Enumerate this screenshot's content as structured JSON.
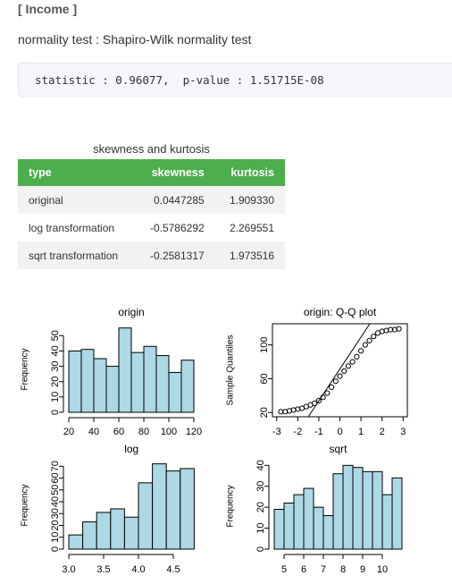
{
  "header": {
    "title": "[ Income ]"
  },
  "test": {
    "label": "normality test : Shapiro-Wilk normality test",
    "result": "statistic : 0.96077,  p-value : 1.51715E-08"
  },
  "table": {
    "caption": "skewness and kurtosis",
    "columns": [
      "type",
      "skewness",
      "kurtosis"
    ],
    "rows": [
      [
        "original",
        "0.0447285",
        "1.909330"
      ],
      [
        "log transformation",
        "-0.5786292",
        "2.269551"
      ],
      [
        "sqrt transformation",
        "-0.2581317",
        "1.973516"
      ]
    ]
  },
  "chart_data": [
    {
      "type": "histogram",
      "title": "origin",
      "ylabel": "Frequency",
      "bins": [
        20,
        30,
        40,
        50,
        60,
        70,
        80,
        90,
        100,
        110,
        120
      ],
      "values": [
        40,
        41,
        35,
        30,
        55,
        39,
        43,
        37,
        26,
        34
      ],
      "color": "#add8e6",
      "xlim": [
        20,
        120
      ],
      "xticks": [
        20,
        40,
        60,
        80,
        100,
        120
      ],
      "ylim": [
        0,
        56
      ],
      "yticks": [
        0,
        10,
        20,
        30,
        40,
        50
      ]
    },
    {
      "type": "scatter",
      "title": "origin: Q-Q plot",
      "ylabel": "Sample Quantiles",
      "x": [
        -2.8,
        -2.6,
        -2.4,
        -2.2,
        -2.0,
        -1.8,
        -1.6,
        -1.4,
        -1.2,
        -1.0,
        -0.8,
        -0.6,
        -0.4,
        -0.2,
        0,
        0.2,
        0.4,
        0.6,
        0.8,
        1.0,
        1.2,
        1.4,
        1.6,
        1.8,
        2.0,
        2.2,
        2.4,
        2.6,
        2.8
      ],
      "y": [
        21,
        21,
        22,
        23,
        24,
        25,
        27,
        29,
        31,
        34,
        38,
        43,
        50,
        57,
        63,
        69,
        75,
        80,
        86,
        93,
        100,
        105,
        110,
        114,
        116,
        117,
        118,
        118,
        119
      ],
      "reference_line": {
        "x": [
          -1.5,
          1.42
        ],
        "y": [
          15,
          125
        ]
      },
      "xlim": [
        -3.2,
        3.2
      ],
      "xticks": [
        -3,
        -2,
        -1,
        0,
        1,
        2,
        3
      ],
      "ylim": [
        15,
        125
      ],
      "yticks": [
        20,
        60,
        100
      ]
    },
    {
      "type": "histogram",
      "title": "log",
      "ylabel": "Frequency",
      "bins": [
        3.0,
        3.2,
        3.4,
        3.6,
        3.8,
        4.0,
        4.2,
        4.4,
        4.6,
        4.8
      ],
      "values": [
        12,
        23,
        31,
        34,
        27,
        56,
        72,
        66,
        68
      ],
      "color": "#add8e6",
      "xlim": [
        3.0,
        4.8
      ],
      "xticks": [
        {
          "value": 3,
          "label": "3.0"
        },
        3.5,
        {
          "value": 4,
          "label": "4.0"
        },
        4.5
      ],
      "ylim": [
        0,
        74
      ],
      "yticks": [
        0,
        10,
        20,
        30,
        40,
        50,
        60,
        70
      ]
    },
    {
      "type": "histogram",
      "title": "sqrt",
      "ylabel": "Frequency",
      "bins": [
        4.5,
        5.0,
        5.5,
        6.0,
        6.5,
        7.0,
        7.5,
        8.0,
        8.5,
        9.0,
        9.5,
        10.0,
        10.5,
        11.0
      ],
      "values": [
        19,
        22,
        26,
        29,
        20,
        16,
        36,
        40,
        39,
        37,
        37,
        26,
        34
      ],
      "color": "#add8e6",
      "xlim": [
        4.5,
        11.0
      ],
      "xticks": [
        5,
        6,
        7,
        8,
        9,
        10
      ],
      "ylim": [
        0,
        41
      ],
      "yticks": [
        0,
        10,
        20,
        30,
        40
      ]
    }
  ]
}
